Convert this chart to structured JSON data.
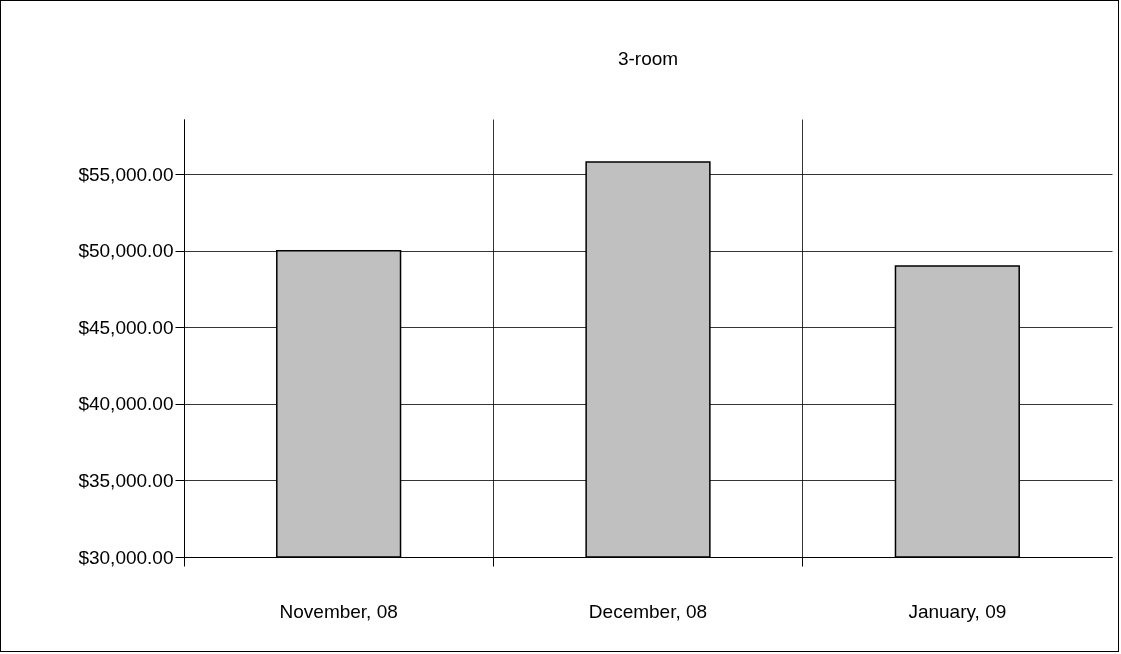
{
  "chart_data": {
    "type": "bar",
    "title": "3-room",
    "categories": [
      "November, 08",
      "December, 08",
      "January, 09"
    ],
    "values": [
      50000,
      55800,
      49000
    ],
    "color": "#c0c0c0",
    "ylim": [
      30000,
      58600
    ],
    "yticks": [
      {
        "value": 30000,
        "label": "$30,000.00"
      },
      {
        "value": 35000,
        "label": "$35,000.00"
      },
      {
        "value": 40000,
        "label": "$40,000.00"
      },
      {
        "value": 45000,
        "label": "$45,000.00"
      },
      {
        "value": 50000,
        "label": "$50,000.00"
      },
      {
        "value": 55000,
        "label": "$55,000.00"
      }
    ],
    "grid": true
  }
}
